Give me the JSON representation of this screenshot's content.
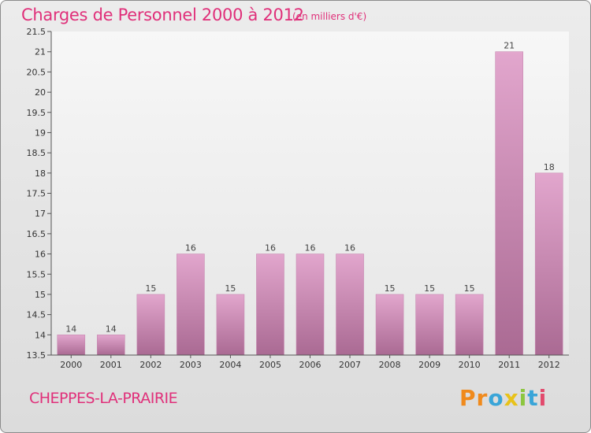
{
  "header": {
    "title": "Charges de Personnel 2000 à 2012",
    "subtitle": "(en milliers d'€)"
  },
  "footer": {
    "place": "CHEPPES-LA-PRAIRIE",
    "logo": [
      "P",
      "r",
      "o",
      "x",
      "i",
      "t",
      "i"
    ]
  },
  "colors": {
    "text_accent": "#e0307a",
    "bar_top": "#e2a6cd",
    "bar_bottom": "#aa6a93",
    "logo": [
      "#f08a1c",
      "#f08a1c",
      "#3aa5d8",
      "#e8c21a",
      "#8cc63f",
      "#3aa5d8",
      "#e24a6d"
    ]
  },
  "chart_data": {
    "type": "bar",
    "title": "Charges de Personnel 2000 à 2012",
    "subtitle": "(en milliers d'€)",
    "categories": [
      "2000",
      "2001",
      "2002",
      "2003",
      "2004",
      "2005",
      "2006",
      "2007",
      "2008",
      "2009",
      "2010",
      "2011",
      "2012"
    ],
    "values": [
      14,
      14,
      15,
      16,
      15,
      16,
      16,
      16,
      15,
      15,
      15,
      21,
      18
    ],
    "ylim": [
      13.5,
      21.5
    ],
    "yticks": [
      13.5,
      14,
      14.5,
      15,
      15.5,
      16,
      16.5,
      17,
      17.5,
      18,
      18.5,
      19,
      19.5,
      20,
      20.5,
      21,
      21.5
    ],
    "grid": false,
    "legend": "none"
  }
}
